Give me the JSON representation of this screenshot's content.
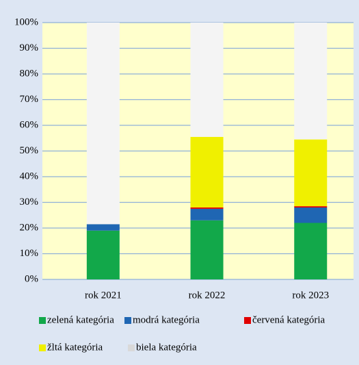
{
  "chart_data": {
    "type": "stacked_bar",
    "categories": [
      "rok 2021",
      "rok 2022",
      "rok 2023"
    ],
    "series": [
      {
        "name": "zelená kategória",
        "color": "#12a84a",
        "values": [
          19,
          23,
          22
        ]
      },
      {
        "name": "modrá kategória",
        "color": "#1f66b3",
        "values": [
          2.5,
          4.5,
          6
        ]
      },
      {
        "name": "červená kategória",
        "color": "#e00000",
        "values": [
          0,
          0.5,
          0.5
        ]
      },
      {
        "name": "žltá kategória",
        "color": "#f0f000",
        "values": [
          0,
          27.5,
          26
        ]
      },
      {
        "name": "biela kategória",
        "color": "#f4f4f4",
        "values": [
          78.5,
          44.5,
          45.5
        ]
      }
    ],
    "ylim": [
      0,
      100
    ],
    "yticks": [
      {
        "value": 0,
        "label": "0%"
      },
      {
        "value": 10,
        "label": "10%"
      },
      {
        "value": 20,
        "label": "20%"
      },
      {
        "value": 30,
        "label": "30%"
      },
      {
        "value": 40,
        "label": "40%"
      },
      {
        "value": 50,
        "label": "50%"
      },
      {
        "value": 60,
        "label": "60%"
      },
      {
        "value": 70,
        "label": "70%"
      },
      {
        "value": 80,
        "label": "80%"
      },
      {
        "value": 90,
        "label": "90%"
      },
      {
        "value": 100,
        "label": "100%"
      }
    ],
    "grid": true
  }
}
